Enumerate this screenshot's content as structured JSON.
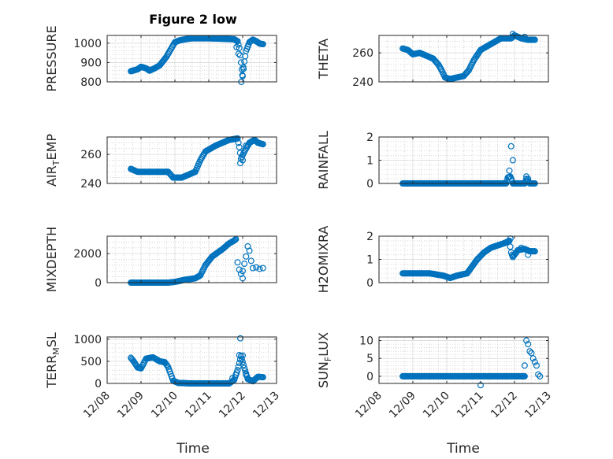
{
  "figure": {
    "title": "Figure 2 low",
    "xlabel": "Time",
    "x_ticks": [
      "12/08",
      "12/09",
      "12/10",
      "12/11",
      "12/12",
      "12/13"
    ],
    "marker": "circle-open",
    "grid": true
  },
  "chart_data": [
    {
      "type": "scatter",
      "ylabel": "PRESSURE",
      "ylim": [
        800,
        1040
      ],
      "yticks": [
        800,
        900,
        1000
      ],
      "color": "#0072BD",
      "knots": [
        [
          0.7,
          855
        ],
        [
          0.9,
          865
        ],
        [
          1.0,
          878
        ],
        [
          1.15,
          870
        ],
        [
          1.25,
          858
        ],
        [
          1.4,
          870
        ],
        [
          1.55,
          885
        ],
        [
          1.75,
          930
        ],
        [
          1.9,
          975
        ],
        [
          2.0,
          1005
        ],
        [
          2.15,
          1015
        ],
        [
          2.3,
          1020
        ],
        [
          2.5,
          1025
        ],
        [
          3.0,
          1025
        ],
        [
          3.5,
          1022
        ],
        [
          3.75,
          1020
        ],
        [
          3.85,
          1010
        ],
        [
          3.9,
          975
        ],
        [
          3.95,
          900
        ],
        [
          4.0,
          830
        ],
        [
          4.05,
          905
        ],
        [
          4.1,
          960
        ],
        [
          4.2,
          1005
        ],
        [
          4.3,
          1018
        ],
        [
          4.4,
          1010
        ],
        [
          4.5,
          998
        ],
        [
          4.6,
          995
        ]
      ],
      "extra": [
        [
          3.82,
          980
        ],
        [
          3.88,
          945
        ],
        [
          3.96,
          800
        ],
        [
          4.02,
          875
        ],
        [
          3.99,
          835
        ]
      ]
    },
    {
      "type": "scatter",
      "ylabel": "THETA",
      "ylim": [
        240,
        272
      ],
      "yticks": [
        240,
        260
      ],
      "color": "#0072BD",
      "knots": [
        [
          0.7,
          263
        ],
        [
          0.85,
          262
        ],
        [
          1.0,
          259
        ],
        [
          1.2,
          260
        ],
        [
          1.4,
          258
        ],
        [
          1.6,
          256
        ],
        [
          1.75,
          252
        ],
        [
          1.85,
          248
        ],
        [
          1.95,
          243
        ],
        [
          2.1,
          242
        ],
        [
          2.3,
          243
        ],
        [
          2.5,
          244
        ],
        [
          2.65,
          248
        ],
        [
          2.8,
          255
        ],
        [
          3.0,
          262
        ],
        [
          3.3,
          266
        ],
        [
          3.6,
          270
        ],
        [
          3.9,
          270
        ],
        [
          4.0,
          272
        ],
        [
          4.2,
          270
        ],
        [
          4.4,
          269
        ],
        [
          4.6,
          269
        ]
      ],
      "extra": [
        [
          3.95,
          273
        ],
        [
          4.3,
          271
        ]
      ]
    },
    {
      "type": "scatter",
      "ylabel": "AIR_TEMP",
      "ylim": [
        240,
        272
      ],
      "yticks": [
        240,
        260
      ],
      "color": "#0072BD",
      "knots": [
        [
          0.7,
          250
        ],
        [
          0.9,
          248
        ],
        [
          1.0,
          248
        ],
        [
          1.5,
          248
        ],
        [
          1.8,
          248
        ],
        [
          1.95,
          244
        ],
        [
          2.2,
          244
        ],
        [
          2.4,
          246
        ],
        [
          2.6,
          248
        ],
        [
          2.75,
          256
        ],
        [
          2.9,
          262
        ],
        [
          3.2,
          266
        ],
        [
          3.6,
          270
        ],
        [
          3.85,
          271
        ],
        [
          3.9,
          265
        ],
        [
          3.95,
          257
        ],
        [
          4.05,
          262
        ],
        [
          4.2,
          268
        ],
        [
          4.35,
          270
        ],
        [
          4.45,
          268
        ],
        [
          4.6,
          267
        ]
      ],
      "extra": [
        [
          3.93,
          254
        ],
        [
          4.0,
          256
        ],
        [
          4.1,
          266
        ]
      ]
    },
    {
      "type": "scatter",
      "ylabel": "RAINFALL",
      "ylim": [
        0,
        2
      ],
      "yticks": [
        0,
        1,
        2
      ],
      "color": "#0072BD",
      "knots": [
        [
          0.7,
          0
        ],
        [
          3.75,
          0
        ],
        [
          3.8,
          0.25
        ],
        [
          3.88,
          0.3
        ],
        [
          3.95,
          0
        ],
        [
          4.3,
          0
        ],
        [
          4.35,
          0.2
        ],
        [
          4.4,
          0.1
        ],
        [
          4.45,
          0
        ],
        [
          4.6,
          0
        ]
      ],
      "extra": [
        [
          3.9,
          1.6
        ],
        [
          3.95,
          1.0
        ],
        [
          3.85,
          0.55
        ],
        [
          4.35,
          0.3
        ],
        [
          4.4,
          0.2
        ]
      ]
    },
    {
      "type": "scatter",
      "ylabel": "MIXDEPTH",
      "ylim": [
        0,
        3200
      ],
      "yticks": [
        0,
        2000
      ],
      "color": "#0072BD",
      "knots": [
        [
          0.7,
          0
        ],
        [
          1.8,
          0
        ],
        [
          2.0,
          50
        ],
        [
          2.3,
          200
        ],
        [
          2.6,
          300
        ],
        [
          2.75,
          500
        ],
        [
          2.9,
          1200
        ],
        [
          3.1,
          1800
        ],
        [
          3.4,
          2300
        ],
        [
          3.6,
          2700
        ],
        [
          3.75,
          2900
        ],
        [
          3.8,
          3000
        ]
      ],
      "extra": [
        [
          3.85,
          1400
        ],
        [
          3.9,
          900
        ],
        [
          3.95,
          600
        ],
        [
          4.0,
          800
        ],
        [
          4.05,
          1300
        ],
        [
          4.1,
          1800
        ],
        [
          4.15,
          2500
        ],
        [
          4.2,
          2200
        ],
        [
          4.25,
          1500
        ],
        [
          4.3,
          1000
        ],
        [
          4.4,
          1050
        ],
        [
          4.5,
          950
        ],
        [
          4.6,
          1000
        ],
        [
          4.0,
          300
        ]
      ]
    },
    {
      "type": "scatter",
      "ylabel": "H2OMIXRA",
      "ylim": [
        0,
        2
      ],
      "yticks": [
        0,
        1,
        2
      ],
      "color": "#0072BD",
      "knots": [
        [
          0.7,
          0.4
        ],
        [
          1.5,
          0.4
        ],
        [
          1.9,
          0.3
        ],
        [
          2.1,
          0.2
        ],
        [
          2.3,
          0.3
        ],
        [
          2.6,
          0.4
        ],
        [
          2.75,
          0.7
        ],
        [
          2.9,
          1.0
        ],
        [
          3.1,
          1.3
        ],
        [
          3.3,
          1.5
        ],
        [
          3.5,
          1.6
        ],
        [
          3.7,
          1.7
        ],
        [
          3.85,
          1.8
        ],
        [
          3.9,
          1.3
        ],
        [
          3.95,
          1.1
        ],
        [
          4.1,
          1.4
        ],
        [
          4.3,
          1.45
        ],
        [
          4.45,
          1.35
        ],
        [
          4.6,
          1.35
        ]
      ],
      "extra": [
        [
          3.88,
          1.9
        ],
        [
          3.95,
          1.15
        ],
        [
          4.2,
          1.5
        ],
        [
          4.4,
          1.2
        ]
      ]
    },
    {
      "type": "scatter",
      "ylabel": "TERR_MSL",
      "ylim": [
        0,
        1050
      ],
      "yticks": [
        0,
        500,
        1000
      ],
      "color": "#0072BD",
      "knots": [
        [
          0.7,
          580
        ],
        [
          0.8,
          480
        ],
        [
          0.9,
          360
        ],
        [
          1.0,
          340
        ],
        [
          1.15,
          560
        ],
        [
          1.35,
          590
        ],
        [
          1.55,
          500
        ],
        [
          1.7,
          480
        ],
        [
          1.8,
          370
        ],
        [
          1.95,
          60
        ],
        [
          2.1,
          10
        ],
        [
          2.5,
          0
        ],
        [
          3.0,
          0
        ],
        [
          3.5,
          0
        ],
        [
          3.6,
          0
        ],
        [
          3.75,
          80
        ],
        [
          3.85,
          300
        ],
        [
          3.95,
          620
        ],
        [
          4.05,
          350
        ],
        [
          4.15,
          100
        ],
        [
          4.3,
          50
        ],
        [
          4.45,
          150
        ],
        [
          4.6,
          140
        ]
      ],
      "extra": [
        [
          3.93,
          1020
        ],
        [
          3.9,
          640
        ],
        [
          4.0,
          630
        ],
        [
          4.1,
          200
        ],
        [
          3.7,
          120
        ],
        [
          3.8,
          200
        ]
      ]
    },
    {
      "type": "scatter",
      "ylabel": "SUN_FLUX",
      "ylim": [
        -2,
        11
      ],
      "yticks": [
        0,
        5,
        10
      ],
      "color": "#0072BD",
      "knots": [
        [
          0.7,
          0
        ],
        [
          4.3,
          0
        ]
      ],
      "extra": [
        [
          3.0,
          -2.5
        ],
        [
          4.35,
          10
        ],
        [
          4.4,
          9
        ],
        [
          4.45,
          7
        ],
        [
          4.5,
          6.5
        ],
        [
          4.55,
          5
        ],
        [
          4.6,
          4
        ],
        [
          4.65,
          3
        ],
        [
          4.7,
          0.5
        ],
        [
          4.75,
          0
        ],
        [
          4.3,
          3
        ]
      ]
    }
  ]
}
